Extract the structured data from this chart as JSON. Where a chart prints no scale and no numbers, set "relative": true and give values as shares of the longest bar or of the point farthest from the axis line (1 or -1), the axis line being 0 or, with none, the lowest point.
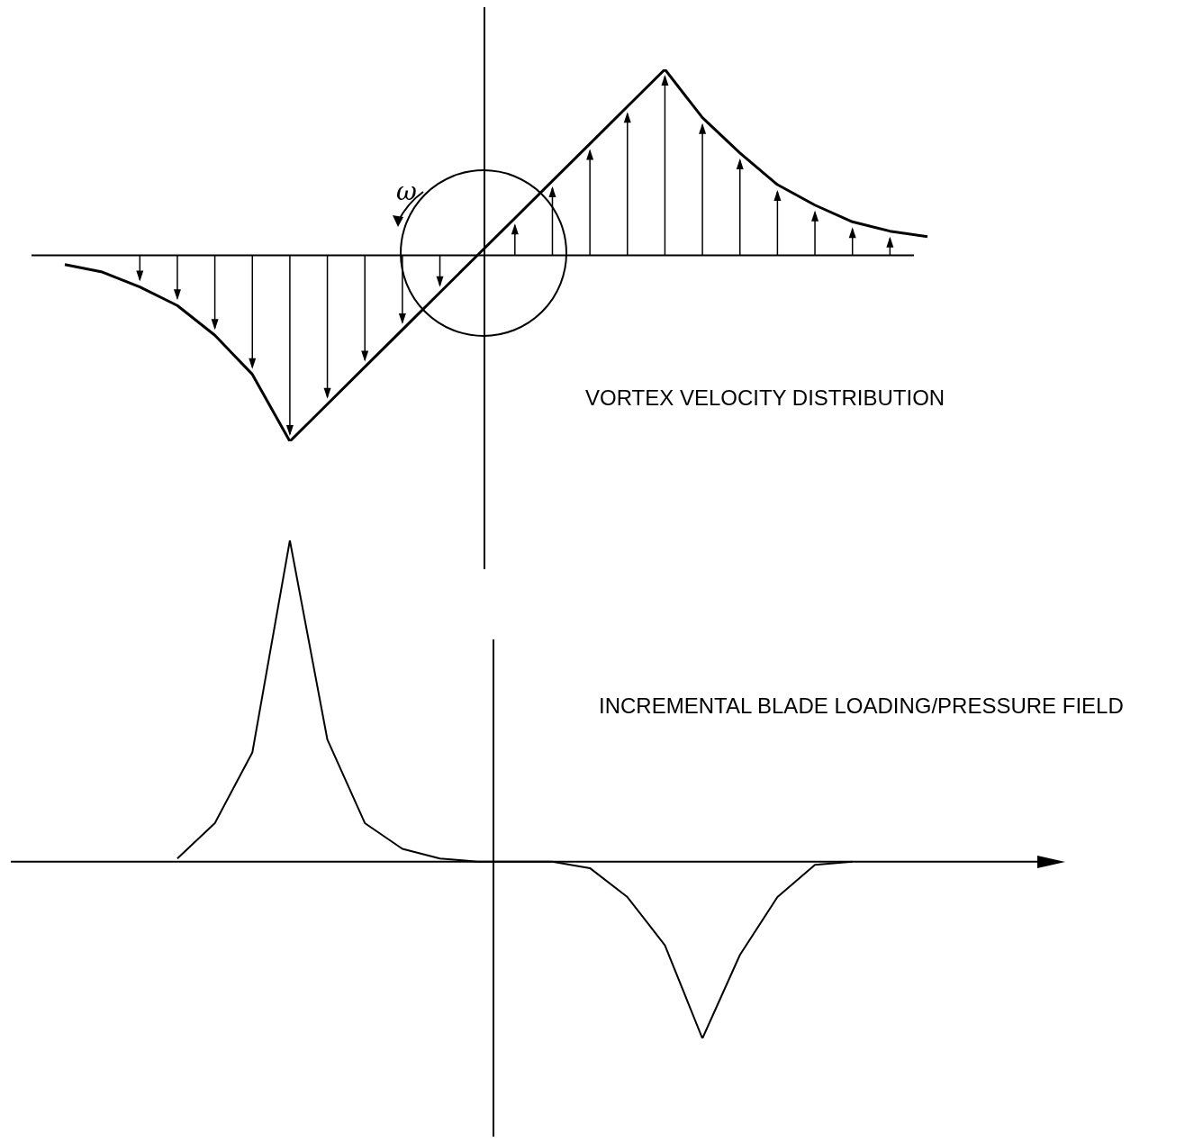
{
  "chart_data": [
    {
      "type": "line",
      "title": "VORTEX VELOCITY DISTRIBUTION",
      "relative": true,
      "categories": [
        null,
        null,
        null,
        null,
        null,
        null,
        null,
        null,
        null,
        null,
        null,
        null,
        null,
        null,
        null,
        null,
        null,
        null,
        null,
        null,
        null,
        null,
        null,
        null
      ],
      "color": "#000000",
      "marker": "none",
      "annotations": [
        "ω"
      ],
      "values": [
        -0.05,
        -0.09,
        -0.17,
        -0.27,
        -0.43,
        -0.64,
        -1.0,
        -0.8,
        -0.6,
        -0.4,
        -0.2,
        0,
        0.2,
        0.4,
        0.6,
        0.8,
        1.0,
        0.74,
        0.55,
        0.38,
        0.27,
        0.18,
        0.13,
        0.1
      ]
    },
    {
      "type": "line",
      "title": "INCREMENTAL BLADE LOADING/PRESSURE FIELD",
      "relative": true,
      "categories": [
        null,
        null,
        null,
        null,
        null,
        null,
        null,
        null,
        null,
        null,
        null,
        null,
        null,
        null,
        null,
        null,
        null,
        null,
        null,
        null,
        null,
        null,
        null,
        null
      ],
      "color": "#000000",
      "marker": "none",
      "values": [
        null,
        null,
        null,
        0.01,
        0.12,
        0.34,
        1.0,
        0.38,
        0.12,
        0.04,
        0.01,
        0,
        0,
        0,
        -0.02,
        -0.11,
        -0.26,
        -0.55,
        -0.29,
        -0.11,
        -0.01,
        0,
        null,
        null
      ]
    }
  ]
}
